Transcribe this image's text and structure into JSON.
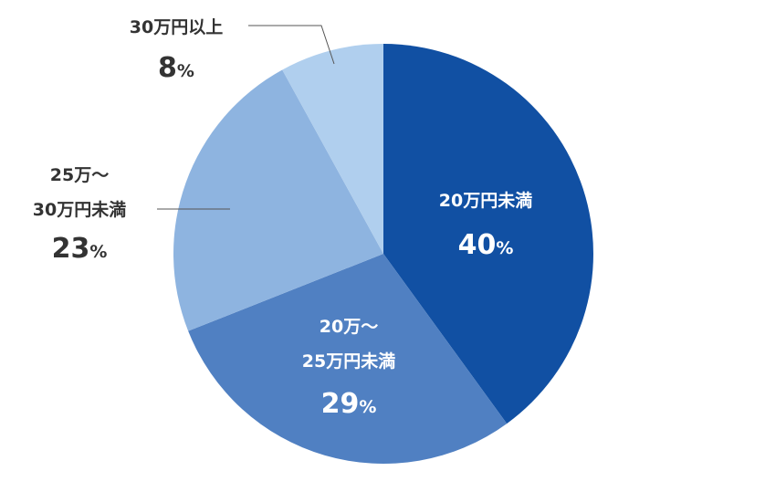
{
  "chart_data": {
    "type": "pie",
    "title": "",
    "slices": [
      {
        "lines": [
          "20万円未満"
        ],
        "value": 40,
        "color": "#1150a3",
        "label_position": "inside"
      },
      {
        "lines": [
          "20万〜",
          "25万円未満"
        ],
        "value": 29,
        "color": "#5080c2",
        "label_position": "inside"
      },
      {
        "lines": [
          "25万〜",
          "30万円未満"
        ],
        "value": 23,
        "color": "#8eb4e0",
        "label_position": "outside"
      },
      {
        "lines": [
          "30万円以上"
        ],
        "value": 8,
        "color": "#b0cfee",
        "label_position": "outside"
      }
    ],
    "unit": "%",
    "start": "12 o'clock",
    "direction": "clockwise",
    "legend": "none"
  }
}
